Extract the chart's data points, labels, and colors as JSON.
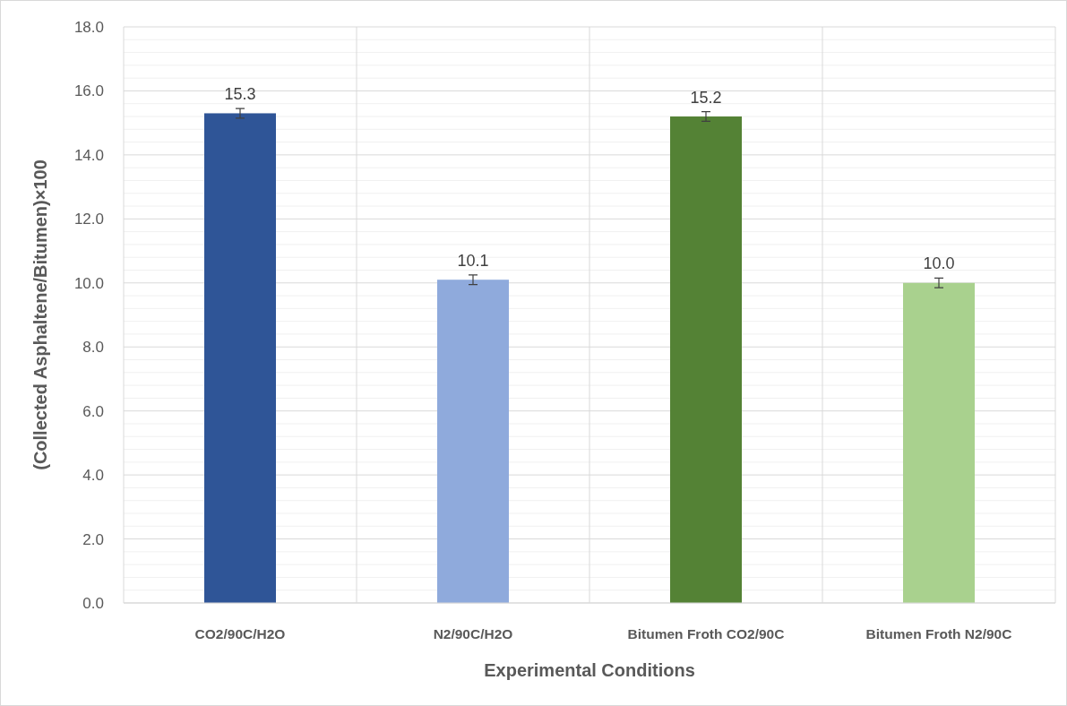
{
  "chart_data": {
    "type": "bar",
    "xlabel": "Experimental Conditions",
    "ylabel": "(Collected Asphaltene/Bitumen)×100",
    "categories": [
      "CO2/90C/H2O",
      "N2/90C/H2O",
      "Bitumen Froth CO2/90C",
      "Bitumen Froth N2/90C"
    ],
    "values": [
      15.3,
      10.1,
      15.2,
      10.0
    ],
    "colors": [
      "#2f5597",
      "#8faadc",
      "#548235",
      "#a9d18e"
    ],
    "errors": [
      0.15,
      0.15,
      0.15,
      0.15
    ],
    "value_labels": [
      "15.3",
      "10.1",
      "15.2",
      "10.0"
    ],
    "ylim": [
      0,
      18
    ],
    "yticks": [
      {
        "value": 0,
        "label": "0.0"
      },
      {
        "value": 2,
        "label": "2.0"
      },
      {
        "value": 4,
        "label": "4.0"
      },
      {
        "value": 6,
        "label": "6.0"
      },
      {
        "value": 8,
        "label": "8.0"
      },
      {
        "value": 10,
        "label": "10.0"
      },
      {
        "value": 12,
        "label": "12.0"
      },
      {
        "value": 14,
        "label": "14.0"
      },
      {
        "value": 16,
        "label": "16.0"
      },
      {
        "value": 18,
        "label": "18.0"
      }
    ],
    "grid": true
  }
}
